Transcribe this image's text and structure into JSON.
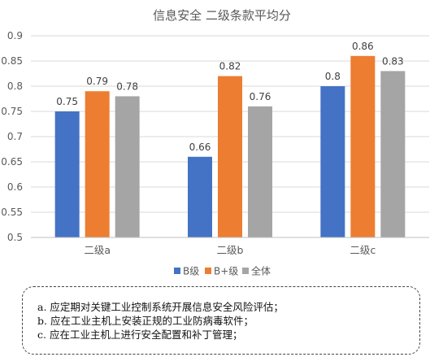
{
  "chart_data": {
    "type": "bar",
    "title": "信息安全 二级条款平均分",
    "categories": [
      "二级a",
      "二级b",
      "二级c"
    ],
    "series": [
      {
        "name": "B级",
        "color": "#4472C4",
        "values": [
          0.75,
          0.66,
          0.8
        ],
        "labels": [
          "0.75",
          "0.66",
          "0.8"
        ]
      },
      {
        "name": "B+级",
        "color": "#ED7D31",
        "values": [
          0.79,
          0.82,
          0.86
        ],
        "labels": [
          "0.79",
          "0.82",
          "0.86"
        ]
      },
      {
        "name": "全体",
        "color": "#A5A5A5",
        "values": [
          0.78,
          0.76,
          0.83
        ],
        "labels": [
          "0.78",
          "0.76",
          "0.83"
        ]
      }
    ],
    "ylim": [
      0.5,
      0.9
    ],
    "yticks": [
      "0.5",
      "0.55",
      "0.6",
      "0.65",
      "0.7",
      "0.75",
      "0.8",
      "0.85",
      "0.9"
    ],
    "grid": true,
    "legend": "bottom"
  },
  "notes": [
    "a. 应定期对关键工业控制系统开展信息安全风险评估；",
    "b. 应在工业主机上安装正规的工业防病毒软件；",
    "c. 应在工业主机上进行安全配置和补丁管理；"
  ]
}
